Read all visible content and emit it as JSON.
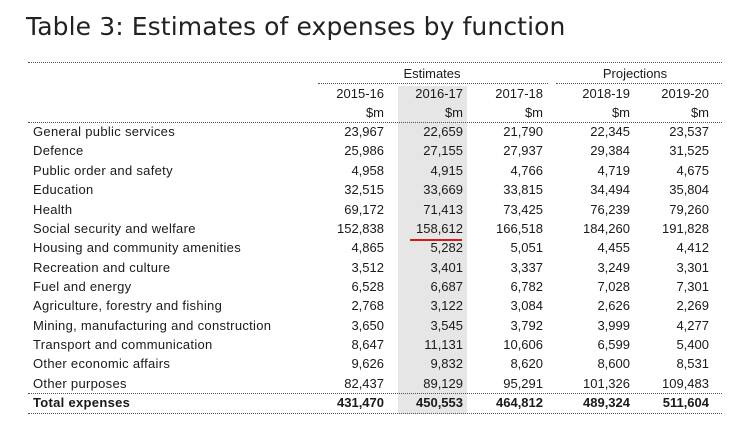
{
  "title": "Table 3: Estimates of expenses by function",
  "groups": {
    "estimates": "Estimates",
    "projections": "Projections"
  },
  "years": [
    "2015-16",
    "2016-17",
    "2017-18",
    "2018-19",
    "2019-20"
  ],
  "unit": "$m",
  "rows": [
    {
      "label": "General public services",
      "values": [
        "23,967",
        "22,659",
        "21,790",
        "22,345",
        "23,537"
      ]
    },
    {
      "label": "Defence",
      "values": [
        "25,986",
        "27,155",
        "27,937",
        "29,384",
        "31,525"
      ]
    },
    {
      "label": "Public order and safety",
      "values": [
        "4,958",
        "4,915",
        "4,766",
        "4,719",
        "4,675"
      ]
    },
    {
      "label": "Education",
      "values": [
        "32,515",
        "33,669",
        "33,815",
        "34,494",
        "35,804"
      ]
    },
    {
      "label": "Health",
      "values": [
        "69,172",
        "71,413",
        "73,425",
        "76,239",
        "79,260"
      ]
    },
    {
      "label": "Social security and welfare",
      "values": [
        "152,838",
        "158,612",
        "166,518",
        "184,260",
        "191,828"
      ]
    },
    {
      "label": "Housing and community amenities",
      "values": [
        "4,865",
        "5,282",
        "5,051",
        "4,455",
        "4,412"
      ]
    },
    {
      "label": "Recreation and culture",
      "values": [
        "3,512",
        "3,401",
        "3,337",
        "3,249",
        "3,301"
      ]
    },
    {
      "label": "Fuel and energy",
      "values": [
        "6,528",
        "6,687",
        "6,782",
        "7,028",
        "7,301"
      ]
    },
    {
      "label": "Agriculture, forestry and fishing",
      "values": [
        "2,768",
        "3,122",
        "3,084",
        "2,626",
        "2,269"
      ]
    },
    {
      "label": "Mining, manufacturing and construction",
      "values": [
        "3,650",
        "3,545",
        "3,792",
        "3,999",
        "4,277"
      ]
    },
    {
      "label": "Transport and communication",
      "values": [
        "8,647",
        "11,131",
        "10,606",
        "6,599",
        "5,400"
      ]
    },
    {
      "label": "Other economic affairs",
      "values": [
        "9,626",
        "9,832",
        "8,620",
        "8,600",
        "8,531"
      ]
    },
    {
      "label": "Other purposes",
      "values": [
        "82,437",
        "89,129",
        "95,291",
        "101,326",
        "109,483"
      ]
    }
  ],
  "total": {
    "label": "Total expenses",
    "values": [
      "431,470",
      "450,553",
      "464,812",
      "489,324",
      "511,604"
    ]
  },
  "highlight_color": "#d11a1a",
  "shade_color": "#e6e6e6"
}
